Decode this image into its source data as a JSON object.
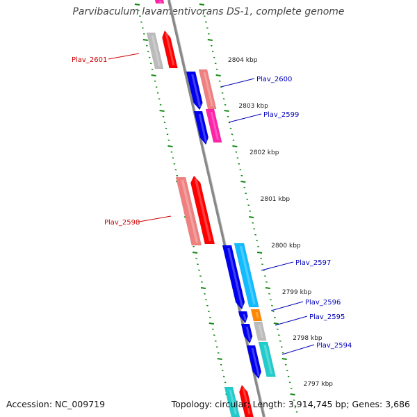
{
  "title": "Parvibaculum lavamentivorans DS-1, complete genome",
  "footer": {
    "accession": "Accession: NC_009719",
    "summary": "Topology: circular; Length: 3,914,745 bp; Genes: 3,686"
  },
  "colors": {
    "backbone": "#888888",
    "tick": "#118811",
    "forward_label": "#cc0000",
    "reverse_label": "#0000bb",
    "red": "#ff0000",
    "salmon": "#f08080",
    "gray": "#bbbbbb",
    "blue": "#0000ee",
    "pink": "#ff22aa",
    "sky": "#11bbff",
    "orange": "#ff8800",
    "teal": "#22cccc"
  },
  "kbp_labels": [
    "2804 kbp",
    "2803 kbp",
    "2802 kbp",
    "2801 kbp",
    "2800 kbp",
    "2799 kbp",
    "2798 kbp",
    "2797 kbp"
  ],
  "gene_labels": [
    {
      "name": "Plav_2601",
      "strand": "forward"
    },
    {
      "name": "Plav_2600",
      "strand": "reverse"
    },
    {
      "name": "Plav_2599",
      "strand": "reverse"
    },
    {
      "name": "Plav_2598",
      "strand": "forward"
    },
    {
      "name": "Plav_2597",
      "strand": "reverse"
    },
    {
      "name": "Plav_2596",
      "strand": "reverse"
    },
    {
      "name": "Plav_2595",
      "strand": "reverse"
    },
    {
      "name": "Plav_2594",
      "strand": "reverse"
    }
  ]
}
